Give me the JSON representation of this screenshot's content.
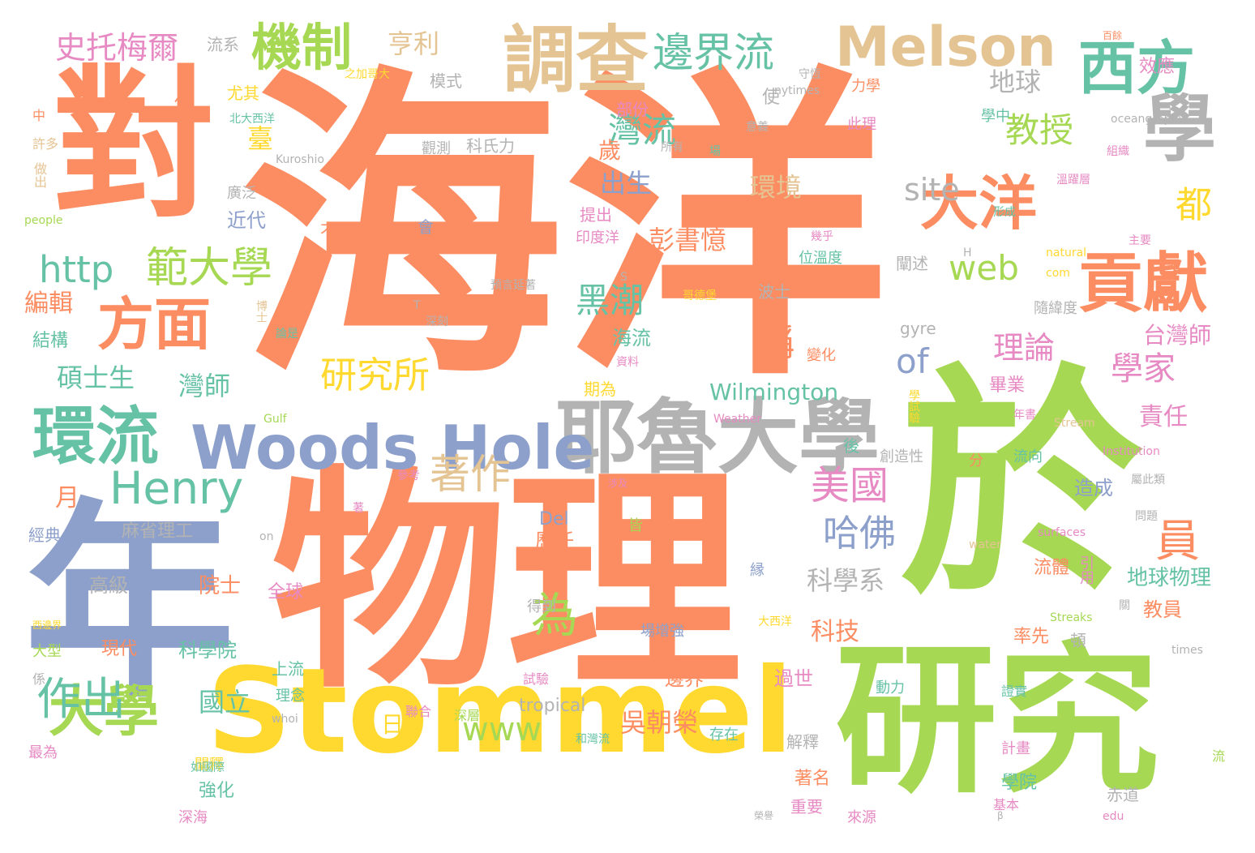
{
  "palette": {
    "orange": "#fc8d62",
    "blue": "#8da0cb",
    "green": "#a6d854",
    "yellow": "#ffd92f",
    "tan": "#e5c494",
    "gray": "#b3b3b3",
    "teal": "#66c2a5",
    "pink": "#e78ac3"
  },
  "words": [
    {
      "text": "海洋",
      "color": "orange"
    },
    {
      "text": "物理",
      "color": "orange"
    },
    {
      "text": "於",
      "color": "green"
    },
    {
      "text": "年",
      "color": "blue"
    },
    {
      "text": "對",
      "color": "orange"
    },
    {
      "text": "研究",
      "color": "green"
    },
    {
      "text": "Stommel",
      "color": "yellow"
    },
    {
      "text": "耶魯大學",
      "color": "gray"
    },
    {
      "text": "Woods Hole",
      "color": "blue"
    },
    {
      "text": "調查",
      "color": "tan"
    },
    {
      "text": "Melson",
      "color": "tan"
    },
    {
      "text": "西方",
      "color": "teal"
    },
    {
      "text": "學",
      "color": "gray"
    },
    {
      "text": "環流",
      "color": "teal"
    },
    {
      "text": "貢獻",
      "color": "orange"
    },
    {
      "text": "大洋",
      "color": "orange"
    },
    {
      "text": "大學",
      "color": "green"
    },
    {
      "text": "方面",
      "color": "orange"
    },
    {
      "text": "機制",
      "color": "green"
    },
    {
      "text": "邊界流",
      "color": "teal"
    },
    {
      "text": "Henry",
      "color": "teal"
    },
    {
      "text": "範大學",
      "color": "green"
    },
    {
      "text": "http",
      "color": "teal"
    },
    {
      "text": "研究所",
      "color": "yellow"
    },
    {
      "text": "著作",
      "color": "tan"
    },
    {
      "text": "美國",
      "color": "pink"
    },
    {
      "text": "哈佛",
      "color": "blue"
    },
    {
      "text": "作出",
      "color": "teal"
    },
    {
      "text": "為",
      "color": "green"
    },
    {
      "text": "教授",
      "color": "green"
    },
    {
      "text": "灣流",
      "color": "teal"
    },
    {
      "text": "黑潮",
      "color": "teal"
    },
    {
      "text": "web",
      "color": "green"
    },
    {
      "text": "site",
      "color": "gray"
    },
    {
      "text": "of",
      "color": "blue"
    },
    {
      "text": "www",
      "color": "green"
    },
    {
      "text": "員",
      "color": "orange"
    },
    {
      "text": "都",
      "color": "yellow"
    },
    {
      "text": "史托梅爾",
      "color": "pink"
    },
    {
      "text": "亨利",
      "color": "tan"
    },
    {
      "text": "理論",
      "color": "pink"
    },
    {
      "text": "學家",
      "color": "pink"
    },
    {
      "text": "稱",
      "color": "orange"
    },
    {
      "text": "科學系",
      "color": "gray"
    },
    {
      "text": "地球",
      "color": "gray"
    },
    {
      "text": "出生",
      "color": "blue"
    },
    {
      "text": "環境",
      "color": "tan"
    },
    {
      "text": "彭書憶",
      "color": "orange"
    },
    {
      "text": "吳朝榮",
      "color": "orange"
    },
    {
      "text": "碩士生",
      "color": "teal"
    },
    {
      "text": "編輯",
      "color": "orange"
    },
    {
      "text": "國立",
      "color": "teal"
    },
    {
      "text": "灣師",
      "color": "teal"
    },
    {
      "text": "台灣師",
      "color": "pink"
    },
    {
      "text": "Wilmington",
      "color": "teal"
    },
    {
      "text": "科技",
      "color": "orange"
    },
    {
      "text": "責任",
      "color": "pink"
    },
    {
      "text": "月",
      "color": "orange"
    },
    {
      "text": "日",
      "color": "yellow"
    },
    {
      "text": "麻省理工",
      "color": "gray"
    },
    {
      "text": "高級",
      "color": "gray"
    },
    {
      "text": "院士",
      "color": "orange"
    },
    {
      "text": "科學院",
      "color": "teal"
    },
    {
      "text": "地球物理",
      "color": "teal"
    },
    {
      "text": "教員",
      "color": "orange"
    },
    {
      "text": "臺",
      "color": "yellow"
    },
    {
      "text": "歲",
      "color": "orange"
    },
    {
      "text": "海流",
      "color": "teal"
    },
    {
      "text": "造成",
      "color": "blue"
    },
    {
      "text": "流體",
      "color": "orange"
    },
    {
      "text": "率先",
      "color": "orange"
    },
    {
      "text": "歷任",
      "color": "orange"
    },
    {
      "text": "過世",
      "color": "pink"
    },
    {
      "text": "邊界",
      "color": "orange"
    },
    {
      "text": "全球",
      "color": "pink"
    },
    {
      "text": "tropical",
      "color": "gray"
    },
    {
      "text": "Del",
      "color": "blue"
    },
    {
      "text": "gyre",
      "color": "gray"
    },
    {
      "text": "近代",
      "color": "blue"
    },
    {
      "text": "結構",
      "color": "teal"
    },
    {
      "text": "經典",
      "color": "blue"
    },
    {
      "text": "模式",
      "color": "gray"
    },
    {
      "text": "效應",
      "color": "pink"
    },
    {
      "text": "力學",
      "color": "orange"
    },
    {
      "text": "此理",
      "color": "pink"
    },
    {
      "text": "學中",
      "color": "teal"
    },
    {
      "text": "畢業",
      "color": "pink"
    },
    {
      "text": "隨緯度",
      "color": "gray"
    },
    {
      "text": "闡述",
      "color": "gray"
    },
    {
      "text": "波士",
      "color": "gray"
    },
    {
      "text": "使",
      "color": "gray"
    },
    {
      "text": "部份",
      "color": "pink"
    },
    {
      "text": "尤其",
      "color": "yellow"
    },
    {
      "text": "佈",
      "color": "orange"
    },
    {
      "text": "流系",
      "color": "gray"
    },
    {
      "text": "提出",
      "color": "pink"
    },
    {
      "text": "印度洋",
      "color": "pink"
    },
    {
      "text": "科氏力",
      "color": "gray"
    },
    {
      "text": "觀測",
      "color": "gray"
    },
    {
      "text": "會",
      "color": "blue"
    },
    {
      "text": "不",
      "color": "orange"
    },
    {
      "text": "廣泛",
      "color": "gray"
    },
    {
      "text": "上流",
      "color": "teal"
    },
    {
      "text": "理念",
      "color": "teal"
    },
    {
      "text": "強化",
      "color": "teal"
    },
    {
      "text": "深海",
      "color": "pink"
    },
    {
      "text": "闡釋",
      "color": "yellow"
    },
    {
      "text": "解釋",
      "color": "gray"
    },
    {
      "text": "著名",
      "color": "orange"
    },
    {
      "text": "重要",
      "color": "pink"
    },
    {
      "text": "學院",
      "color": "teal"
    },
    {
      "text": "赤道",
      "color": "gray"
    },
    {
      "text": "場增強",
      "color": "blue"
    },
    {
      "text": "現代",
      "color": "orange"
    },
    {
      "text": "大型",
      "color": "green"
    },
    {
      "text": "最為",
      "color": "pink"
    },
    {
      "text": "後",
      "color": "teal"
    },
    {
      "text": "創造性",
      "color": "gray"
    },
    {
      "text": "分",
      "color": "orange"
    },
    {
      "text": "流向",
      "color": "teal"
    },
    {
      "text": "期為",
      "color": "yellow"
    },
    {
      "text": "變化",
      "color": "orange"
    },
    {
      "text": "位溫度",
      "color": "teal"
    },
    {
      "text": "皆",
      "color": "green"
    },
    {
      "text": "縁",
      "color": "blue"
    },
    {
      "text": "得到",
      "color": "gray"
    },
    {
      "text": "試驗",
      "color": "pink"
    },
    {
      "text": "深層",
      "color": "green"
    },
    {
      "text": "聯合",
      "color": "pink"
    },
    {
      "text": "存在",
      "color": "teal"
    },
    {
      "text": "動力",
      "color": "teal"
    },
    {
      "text": "證實",
      "color": "teal"
    },
    {
      "text": "計畫",
      "color": "pink"
    },
    {
      "text": "基本",
      "color": "pink"
    },
    {
      "text": "來源",
      "color": "pink"
    },
    {
      "text": "引用",
      "color": "pink"
    },
    {
      "text": "頓",
      "color": "gray"
    },
    {
      "text": "係",
      "color": "gray"
    },
    {
      "text": "中",
      "color": "orange"
    },
    {
      "text": "許多",
      "color": "tan"
    },
    {
      "text": "做出",
      "color": "tan"
    },
    {
      "text": "people",
      "color": "green"
    },
    {
      "text": "Kuroshio",
      "color": "gray"
    },
    {
      "text": "北大西洋",
      "color": "teal"
    },
    {
      "text": "之加哥大",
      "color": "yellow"
    },
    {
      "text": "守恆",
      "color": "gray"
    },
    {
      "text": "百餘",
      "color": "orange"
    },
    {
      "text": "oceangraphic",
      "color": "gray"
    },
    {
      "text": "組織",
      "color": "pink"
    },
    {
      "text": "形成",
      "color": "teal"
    },
    {
      "text": "主要",
      "color": "pink"
    },
    {
      "text": "溫躍層",
      "color": "pink"
    },
    {
      "text": "場",
      "color": "teal"
    },
    {
      "text": "所有",
      "color": "gray"
    },
    {
      "text": "意義",
      "color": "gray"
    },
    {
      "text": "nytimes",
      "color": "gray"
    },
    {
      "text": "幾乎",
      "color": "pink"
    },
    {
      "text": "H",
      "color": "gray"
    },
    {
      "text": "natural",
      "color": "yellow"
    },
    {
      "text": "com",
      "color": "yellow"
    },
    {
      "text": "S",
      "color": "gray"
    },
    {
      "text": "預言延著",
      "color": "gray"
    },
    {
      "text": "哥德堡",
      "color": "yellow"
    },
    {
      "text": "T",
      "color": "gray"
    },
    {
      "text": "深刻",
      "color": "gray"
    },
    {
      "text": "博士",
      "color": "tan"
    },
    {
      "text": "論是",
      "color": "teal"
    },
    {
      "text": "資料",
      "color": "pink"
    },
    {
      "text": "學試驗",
      "color": "yellow"
    },
    {
      "text": "Gulf",
      "color": "green"
    },
    {
      "text": "Stream",
      "color": "tan"
    },
    {
      "text": "年書",
      "color": "pink"
    },
    {
      "text": "Weather",
      "color": "pink"
    },
    {
      "text": "參考",
      "color": "pink"
    },
    {
      "text": "著",
      "color": "pink"
    },
    {
      "text": "涉及",
      "color": "pink"
    },
    {
      "text": "Institution",
      "color": "pink"
    },
    {
      "text": "屬此類",
      "color": "gray"
    },
    {
      "text": "問題",
      "color": "gray"
    },
    {
      "text": "surfaces",
      "color": "pink"
    },
    {
      "text": "water",
      "color": "tan"
    },
    {
      "text": "on",
      "color": "gray"
    },
    {
      "text": "關",
      "color": "gray"
    },
    {
      "text": "Streaks",
      "color": "green"
    },
    {
      "text": "times",
      "color": "gray"
    },
    {
      "text": "大西洋",
      "color": "yellow"
    },
    {
      "text": "西邊界",
      "color": "yellow"
    },
    {
      "text": "whoi",
      "color": "gray"
    },
    {
      "text": "如國際",
      "color": "teal"
    },
    {
      "text": "和灣流",
      "color": "teal"
    },
    {
      "text": "流",
      "color": "green"
    },
    {
      "text": "β",
      "color": "gray"
    },
    {
      "text": "edu",
      "color": "pink"
    },
    {
      "text": "榮譽",
      "color": "gray"
    }
  ]
}
